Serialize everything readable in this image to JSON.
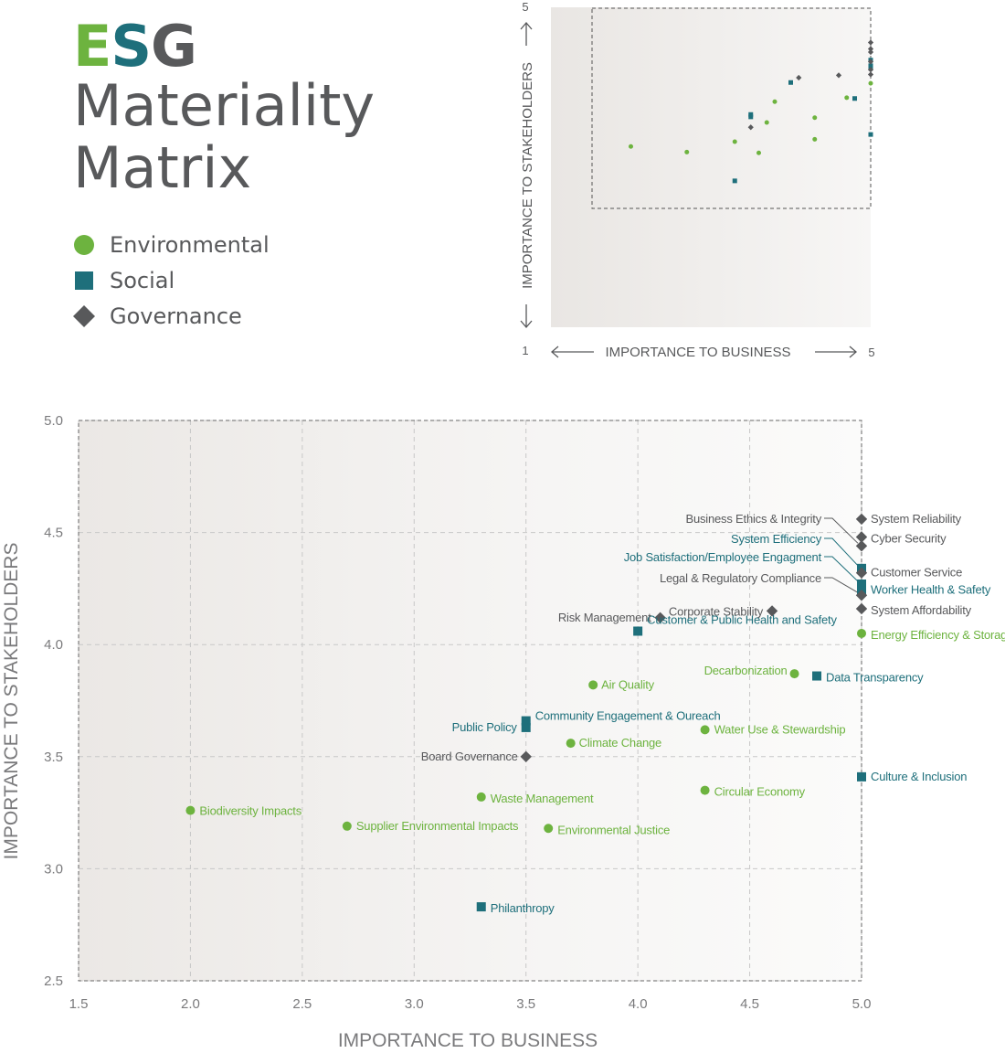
{
  "colors": {
    "environmental": "#6db33f",
    "social": "#1e6f7b",
    "governance": "#58595b",
    "axis_text": "#7a7a7c",
    "grid": "#c8c8c8"
  },
  "title": {
    "e": "E",
    "s": "S",
    "g": "G",
    "line1": "Materiality",
    "line2": "Matrix"
  },
  "legend": [
    {
      "label": "Environmental",
      "icon": "circle-icon",
      "color": "#6db33f"
    },
    {
      "label": "Social",
      "icon": "square-icon",
      "color": "#1e6f7b"
    },
    {
      "label": "Governance",
      "icon": "diamond-icon",
      "color": "#58595b"
    }
  ],
  "overview": {
    "ylabel": "IMPORTANCE TO STAKEHOLDERS",
    "xlabel": "IMPORTANCE TO BUSINESS",
    "min_label": "1",
    "x_max_label": "5",
    "y_max_label": "5"
  },
  "chart_data": {
    "type": "scatter",
    "xlabel": "IMPORTANCE TO BUSINESS",
    "ylabel": "IMPORTANCE TO STAKEHOLDERS",
    "xlim": [
      1.5,
      5.0
    ],
    "ylim": [
      2.5,
      5.0
    ],
    "xticks": [
      "1.5",
      "2.0",
      "2.5",
      "3.0",
      "3.5",
      "4.0",
      "4.5",
      "5.0"
    ],
    "yticks": [
      "2.5",
      "3.0",
      "3.5",
      "4.0",
      "4.5",
      "5.0"
    ],
    "grid": true,
    "series": [
      {
        "name": "Environmental",
        "marker": "circle",
        "points": [
          {
            "label": "Energy Efficiency & Storage",
            "x": 5.0,
            "y": 4.05
          },
          {
            "label": "Decarbonization",
            "x": 4.7,
            "y": 3.87
          },
          {
            "label": "Air Quality",
            "x": 3.8,
            "y": 3.82
          },
          {
            "label": "Water Use & Stewardship",
            "x": 4.3,
            "y": 3.62
          },
          {
            "label": "Climate Change",
            "x": 3.7,
            "y": 3.56
          },
          {
            "label": "Circular Economy",
            "x": 4.3,
            "y": 3.35
          },
          {
            "label": "Waste Management",
            "x": 3.3,
            "y": 3.32
          },
          {
            "label": "Biodiversity Impacts",
            "x": 2.0,
            "y": 3.26
          },
          {
            "label": "Supplier Environmental Impacts",
            "x": 2.7,
            "y": 3.19
          },
          {
            "label": "Environmental Justice",
            "x": 3.6,
            "y": 3.18
          }
        ]
      },
      {
        "name": "Social",
        "marker": "square",
        "points": [
          {
            "label": "System Efficiency",
            "x": 5.0,
            "y": 4.34
          },
          {
            "label": "Job Satisfaction/Employee Engagment",
            "x": 5.0,
            "y": 4.27
          },
          {
            "label": "Worker Health & Safety",
            "x": 5.0,
            "y": 4.24
          },
          {
            "label": "Customer & Public Health and Safety",
            "x": 4.0,
            "y": 4.06
          },
          {
            "label": "Data Transparency",
            "x": 4.8,
            "y": 3.86
          },
          {
            "label": "Community Engagement & Oureach",
            "x": 3.5,
            "y": 3.66
          },
          {
            "label": "Public Policy",
            "x": 3.5,
            "y": 3.63
          },
          {
            "label": "Culture & Inclusion",
            "x": 5.0,
            "y": 3.41
          },
          {
            "label": "Philanthropy",
            "x": 3.3,
            "y": 2.83
          }
        ]
      },
      {
        "name": "Governance",
        "marker": "diamond",
        "points": [
          {
            "label": "System Reliability",
            "x": 5.0,
            "y": 4.56
          },
          {
            "label": "Cyber Security",
            "x": 5.0,
            "y": 4.48
          },
          {
            "label": "Business Ethics & Integrity",
            "x": 5.0,
            "y": 4.44
          },
          {
            "label": "Customer Service",
            "x": 5.0,
            "y": 4.32
          },
          {
            "label": "Legal & Regulatory Compliance",
            "x": 5.0,
            "y": 4.22
          },
          {
            "label": "System Affordability",
            "x": 5.0,
            "y": 4.16
          },
          {
            "label": "Corporate Stability",
            "x": 4.6,
            "y": 4.15
          },
          {
            "label": "Risk Management",
            "x": 4.1,
            "y": 4.12
          },
          {
            "label": "Board Governance",
            "x": 3.5,
            "y": 3.5
          }
        ]
      }
    ]
  }
}
